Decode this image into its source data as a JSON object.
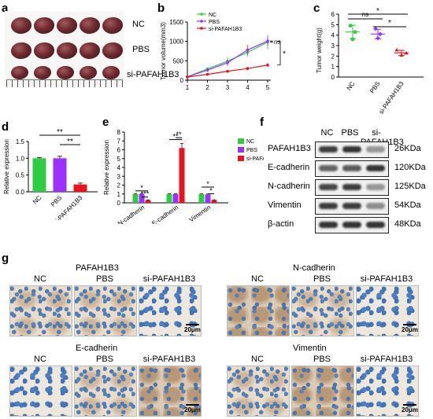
{
  "panel_letters": {
    "a": "a",
    "b": "b",
    "c": "c",
    "d": "d",
    "e": "e",
    "f": "f",
    "g": "g"
  },
  "panel_a": {
    "rows": [
      "NC",
      "PBS",
      "si-PAFAH1B3"
    ]
  },
  "panel_b": {
    "chart_data": {
      "type": "line",
      "ylabel": "Tumor volume(mm3)",
      "x": [
        1,
        2,
        3,
        4,
        5
      ],
      "xlim": [
        1,
        5
      ],
      "ylim": [
        0,
        1500
      ],
      "yticks": [
        0,
        500,
        1000,
        1500
      ],
      "legend_position": "top-left",
      "series": [
        {
          "name": "NC",
          "color": "#2ecc40",
          "values": [
            90,
            290,
            490,
            720,
            980
          ],
          "err": [
            10,
            40,
            100,
            120,
            180
          ]
        },
        {
          "name": "PBS",
          "color": "#9b30ff",
          "values": [
            85,
            260,
            450,
            780,
            1010
          ],
          "err": [
            10,
            45,
            90,
            130,
            140
          ]
        },
        {
          "name": "si-PAFAH1B3",
          "color": "#e8141c",
          "values": [
            80,
            150,
            230,
            300,
            390
          ],
          "err": [
            8,
            25,
            30,
            40,
            50
          ]
        }
      ],
      "annotations": [
        "ns",
        "*"
      ]
    }
  },
  "panel_c": {
    "chart_data": {
      "type": "scatter",
      "ylabel": "Tumor weight(g)",
      "categories": [
        "NC",
        "PBS",
        "si-PAFAH1B3"
      ],
      "ylim": [
        0,
        6
      ],
      "yticks": [
        0,
        1,
        2,
        3,
        4,
        5,
        6
      ],
      "colors": [
        "#2ecc40",
        "#9b30ff",
        "#e8141c"
      ],
      "means": [
        4.3,
        4.1,
        2.3
      ],
      "points": [
        [
          4.9,
          4.3,
          3.6
        ],
        [
          4.6,
          4.1,
          3.7
        ],
        [
          2.6,
          2.3,
          2.1
        ]
      ],
      "err": [
        0.65,
        0.45,
        0.25
      ],
      "annotations": [
        "ns",
        "*",
        "*"
      ]
    }
  },
  "panel_d": {
    "chart_data": {
      "type": "bar",
      "ylabel": "Relative expression",
      "categories": [
        "NC",
        "PBS",
        "si-PAFAH1B3"
      ],
      "values": [
        1.0,
        1.0,
        0.22
      ],
      "err": [
        0.02,
        0.06,
        0.04
      ],
      "colors": [
        "#2ecc40",
        "#9b30ff",
        "#e8141c"
      ],
      "ylim": [
        0,
        1.5
      ],
      "yticks": [
        0.0,
        0.5,
        1.0,
        1.5
      ],
      "annotations": [
        "**",
        "**"
      ]
    }
  },
  "panel_e": {
    "chart_data": {
      "type": "bar",
      "ylabel": "Relative expression",
      "categories": [
        "N-cadherin",
        "E-cadherin",
        "Vimentin"
      ],
      "ylim": [
        0,
        8
      ],
      "yticks": [
        0,
        1,
        2,
        3,
        4,
        5,
        6,
        7,
        8
      ],
      "legend_position": "top-right",
      "series": [
        {
          "name": "NC",
          "color": "#2ecc40",
          "values": [
            1.0,
            1.0,
            1.0
          ],
          "err": [
            0.05,
            0.05,
            0.05
          ]
        },
        {
          "name": "PBS",
          "color": "#9b30ff",
          "values": [
            1.0,
            1.0,
            0.95
          ],
          "err": [
            0.05,
            0.05,
            0.05
          ]
        },
        {
          "name": "si-PAFAH1B3",
          "color": "#e8141c",
          "values": [
            0.3,
            6.2,
            0.3
          ],
          "err": [
            0.04,
            0.5,
            0.04
          ]
        }
      ],
      "annotations": [
        "*",
        "***",
        "**",
        "**",
        "*",
        "*"
      ]
    }
  },
  "panel_f": {
    "columns": [
      "NC",
      "PBS",
      "si-PAFAH1B3"
    ],
    "rows": [
      {
        "protein": "PAFAH1B3",
        "kda": "26KDa",
        "intensity": [
          0.9,
          0.95,
          0.45
        ]
      },
      {
        "protein": "E-cadherin",
        "kda": "120KDa",
        "intensity": [
          0.7,
          0.75,
          0.95
        ]
      },
      {
        "protein": "N-cadherin",
        "kda": "125KDa",
        "intensity": [
          0.85,
          0.9,
          0.45
        ]
      },
      {
        "protein": "Vimentin",
        "kda": "54KDa",
        "intensity": [
          0.9,
          0.9,
          0.5
        ]
      },
      {
        "protein": "β-actin",
        "kda": "48KDa",
        "intensity": [
          0.95,
          0.95,
          0.95
        ]
      }
    ]
  },
  "panel_g": {
    "groups": [
      {
        "title": "PAFAH1B3",
        "columns": [
          "NC",
          "PBS",
          "si-PAFAH1B3"
        ],
        "scale": "20μm"
      },
      {
        "title": "N-cadherin",
        "columns": [
          "NC",
          "PBS",
          "si-PAFAH1B3"
        ],
        "scale": "20μm"
      },
      {
        "title": "E-cadherin",
        "columns": [
          "NC",
          "PBS",
          "si-PAFAH1B3"
        ],
        "scale": "20μm"
      },
      {
        "title": "Vimentin",
        "columns": [
          "NC",
          "PBS",
          "si-PAFAH1B3"
        ],
        "scale": "20μm"
      }
    ]
  }
}
